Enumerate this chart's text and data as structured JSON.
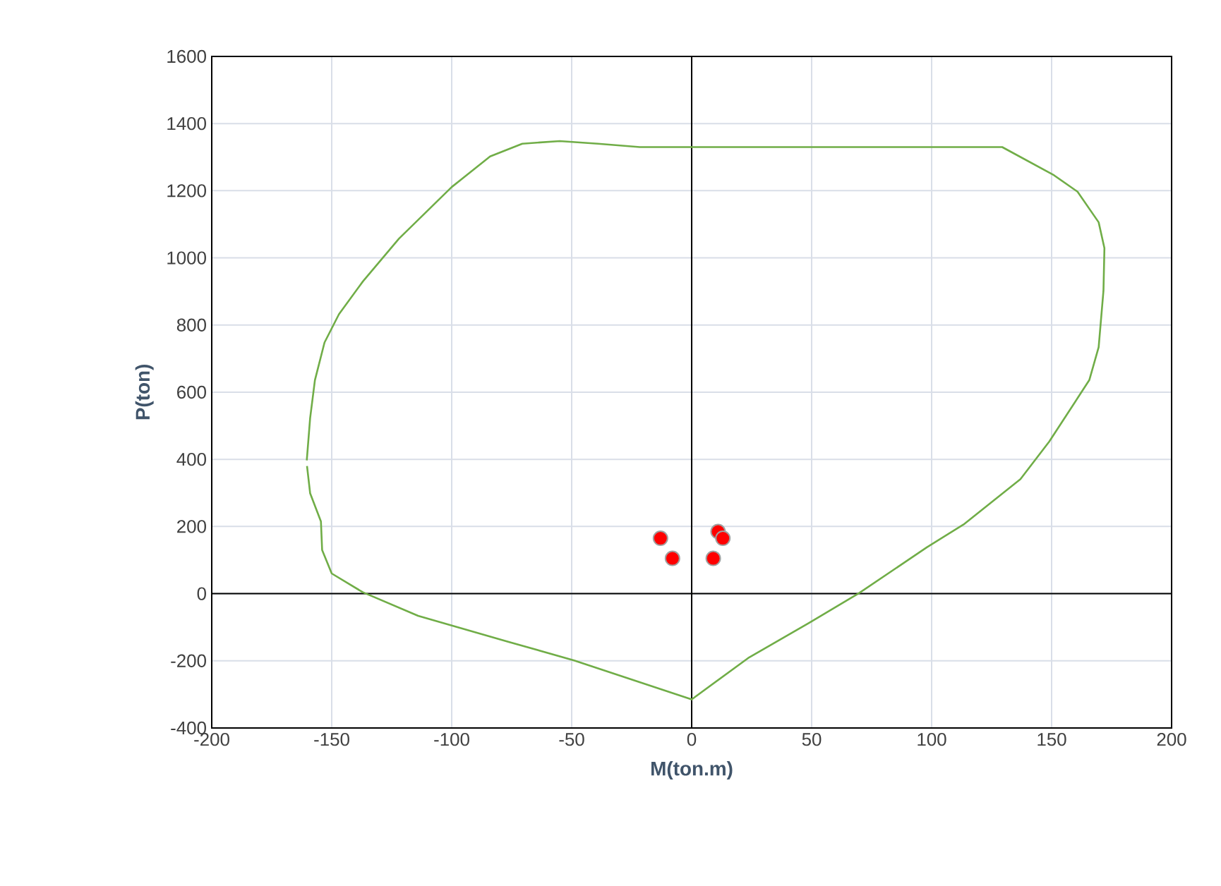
{
  "chart_data": {
    "type": "line",
    "xlabel": "M(ton.m)",
    "ylabel": "P(ton)",
    "xlim": [
      -200,
      200
    ],
    "ylim": [
      -400,
      1600
    ],
    "xticks": [
      -200,
      -150,
      -100,
      -50,
      0,
      50,
      100,
      150,
      200
    ],
    "yticks": [
      -400,
      -200,
      0,
      200,
      400,
      600,
      800,
      1000,
      1200,
      1400,
      1600
    ],
    "grid": true,
    "series": [
      {
        "color": "#70ad47",
        "marker": "none",
        "x": [
          -160.4,
          -159,
          -157,
          -153,
          -147,
          -137,
          -122,
          -100,
          -84,
          -70.6,
          -55,
          -39,
          -21.6,
          129.4,
          151,
          160.8,
          169.6,
          172,
          171.6,
          169.6,
          165.7,
          149,
          137,
          113.7,
          98,
          69.6,
          49,
          23.5,
          0,
          -49,
          -76.5,
          -114,
          -137,
          -150,
          -154,
          -154.5,
          -159,
          -160.3
        ],
        "values": [
          397,
          523,
          636,
          748,
          832,
          930,
          1057,
          1211,
          1302,
          1340,
          1348,
          1340,
          1330,
          1330,
          1246,
          1197,
          1106,
          1029,
          902,
          734,
          636,
          453,
          341,
          208,
          138,
          1,
          -87,
          -192,
          -315,
          -199,
          -143,
          -66,
          4,
          60,
          130,
          215,
          299,
          380
        ]
      },
      {
        "type": "scatter",
        "color": "#ff0000",
        "marker": "circle",
        "x": [
          -13,
          -8,
          11,
          13,
          9
        ],
        "values": [
          165,
          105,
          185,
          165,
          105
        ]
      }
    ]
  }
}
